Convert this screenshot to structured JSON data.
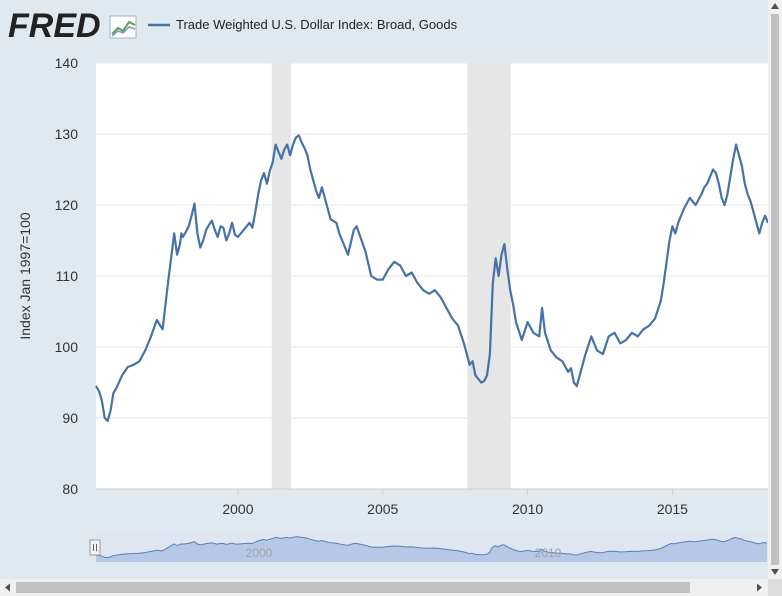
{
  "header": {
    "logo_text": "FRED",
    "legend_label": "Trade Weighted U.S. Dollar Index: Broad, Goods"
  },
  "colors": {
    "series": "#4572a7",
    "recession": "#e6e6e6",
    "navigator_fill": "#b6c8e6",
    "navigator_line": "#5b7fb5",
    "logo": "#222222",
    "logo_icon": "#5fa14e"
  },
  "icons": {
    "logo_mark": "fred-graph-icon",
    "scroll_left": "arrow-left-icon",
    "scroll_right": "arrow-right-icon",
    "scroll_up": "arrow-up-icon",
    "scroll_down": "arrow-down-icon",
    "navigator_handle": "drag-handle-icon"
  },
  "navigator": {
    "labels": [
      "2000",
      "2010"
    ]
  },
  "chart_data": {
    "type": "line",
    "title": "",
    "xlabel": "",
    "ylabel": "Index Jan 1997=100",
    "xlim": [
      1995.1,
      2018.3
    ],
    "ylim": [
      80,
      140
    ],
    "y_ticks": [
      80,
      90,
      100,
      110,
      120,
      130,
      140
    ],
    "x_ticks": [
      2000,
      2005,
      2010,
      2015
    ],
    "grid": true,
    "legend_position": "top-left",
    "recessions": [
      [
        2001.17,
        2001.83
      ],
      [
        2007.92,
        2009.42
      ]
    ],
    "series": [
      {
        "name": "Trade Weighted U.S. Dollar Index: Broad, Goods",
        "x": [
          1995.1,
          1995.2,
          1995.3,
          1995.4,
          1995.5,
          1995.6,
          1995.7,
          1995.8,
          1996.0,
          1996.2,
          1996.4,
          1996.6,
          1996.8,
          1997.0,
          1997.2,
          1997.4,
          1997.5,
          1997.6,
          1997.8,
          1997.9,
          1998.0,
          1998.05,
          1998.1,
          1998.2,
          1998.3,
          1998.4,
          1998.5,
          1998.6,
          1998.7,
          1998.8,
          1998.9,
          1999.0,
          1999.1,
          1999.2,
          1999.3,
          1999.4,
          1999.5,
          1999.6,
          1999.7,
          1999.8,
          1999.9,
          2000.0,
          2000.2,
          2000.4,
          2000.5,
          2000.6,
          2000.7,
          2000.8,
          2000.9,
          2001.0,
          2001.1,
          2001.2,
          2001.3,
          2001.4,
          2001.5,
          2001.6,
          2001.7,
          2001.8,
          2001.9,
          2002.0,
          2002.1,
          2002.2,
          2002.3,
          2002.4,
          2002.5,
          2002.6,
          2002.7,
          2002.8,
          2002.9,
          2003.0,
          2003.2,
          2003.4,
          2003.5,
          2003.6,
          2003.8,
          2004.0,
          2004.1,
          2004.2,
          2004.4,
          2004.6,
          2004.8,
          2005.0,
          2005.2,
          2005.4,
          2005.6,
          2005.8,
          2006.0,
          2006.2,
          2006.4,
          2006.6,
          2006.8,
          2007.0,
          2007.2,
          2007.4,
          2007.6,
          2007.8,
          2008.0,
          2008.1,
          2008.2,
          2008.3,
          2008.4,
          2008.5,
          2008.6,
          2008.7,
          2008.8,
          2008.9,
          2009.0,
          2009.1,
          2009.2,
          2009.3,
          2009.4,
          2009.5,
          2009.6,
          2009.8,
          2010.0,
          2010.2,
          2010.4,
          2010.5,
          2010.6,
          2010.8,
          2011.0,
          2011.2,
          2011.4,
          2011.5,
          2011.6,
          2011.7,
          2011.8,
          2011.9,
          2012.0,
          2012.2,
          2012.4,
          2012.6,
          2012.8,
          2013.0,
          2013.2,
          2013.4,
          2013.6,
          2013.8,
          2014.0,
          2014.2,
          2014.4,
          2014.6,
          2014.7,
          2014.8,
          2014.9,
          2015.0,
          2015.1,
          2015.2,
          2015.3,
          2015.4,
          2015.6,
          2015.8,
          2016.0,
          2016.1,
          2016.2,
          2016.3,
          2016.4,
          2016.5,
          2016.6,
          2016.7,
          2016.8,
          2016.9,
          2017.0,
          2017.1,
          2017.2,
          2017.3,
          2017.4,
          2017.5,
          2017.6,
          2017.7,
          2017.8,
          2017.9,
          2018.0,
          2018.1,
          2018.2,
          2018.3
        ],
        "values": [
          94.5,
          93.8,
          92.5,
          90.0,
          89.6,
          91.0,
          93.5,
          94.2,
          96.0,
          97.2,
          97.5,
          98.0,
          99.5,
          101.5,
          103.8,
          102.5,
          106.0,
          109.5,
          116.0,
          113.0,
          114.5,
          116.0,
          115.5,
          116.2,
          117.0,
          118.5,
          120.2,
          116.0,
          114.0,
          115.0,
          116.5,
          117.2,
          117.8,
          116.5,
          115.5,
          117.0,
          116.8,
          115.0,
          116.0,
          117.5,
          115.8,
          115.5,
          116.5,
          117.5,
          116.8,
          119.0,
          121.5,
          123.5,
          124.5,
          123.0,
          124.8,
          126.0,
          128.5,
          127.5,
          126.5,
          127.8,
          128.5,
          127.0,
          128.5,
          129.5,
          129.8,
          128.8,
          128.0,
          127.0,
          125.0,
          123.5,
          122.0,
          121.0,
          122.5,
          121.0,
          118.0,
          117.5,
          116.0,
          115.0,
          113.0,
          116.5,
          117.0,
          115.8,
          113.5,
          110.0,
          109.5,
          109.5,
          111.0,
          112.0,
          111.5,
          110.0,
          110.5,
          109.0,
          108.0,
          107.5,
          108.0,
          107.0,
          105.5,
          104.0,
          103.0,
          100.5,
          97.5,
          98.0,
          96.0,
          95.5,
          95.0,
          95.2,
          96.0,
          99.0,
          109.0,
          112.5,
          110.0,
          113.0,
          114.5,
          111.0,
          108.0,
          106.0,
          103.5,
          101.0,
          103.5,
          102.0,
          101.5,
          105.5,
          102.0,
          99.5,
          98.5,
          98.0,
          96.5,
          97.0,
          95.0,
          94.5,
          96.0,
          97.5,
          99.0,
          101.5,
          99.5,
          99.0,
          101.5,
          102.0,
          100.5,
          101.0,
          102.0,
          101.5,
          102.5,
          103.0,
          104.0,
          106.5,
          109.0,
          112.0,
          115.0,
          117.0,
          116.0,
          117.5,
          118.5,
          119.5,
          121.0,
          120.0,
          121.5,
          122.5,
          123.0,
          124.0,
          125.0,
          124.5,
          123.0,
          121.0,
          120.0,
          121.5,
          124.0,
          126.5,
          128.5,
          127.0,
          125.5,
          123.0,
          121.5,
          120.5,
          119.0,
          117.5,
          116.0,
          117.5,
          118.5,
          117.5
        ]
      }
    ]
  }
}
